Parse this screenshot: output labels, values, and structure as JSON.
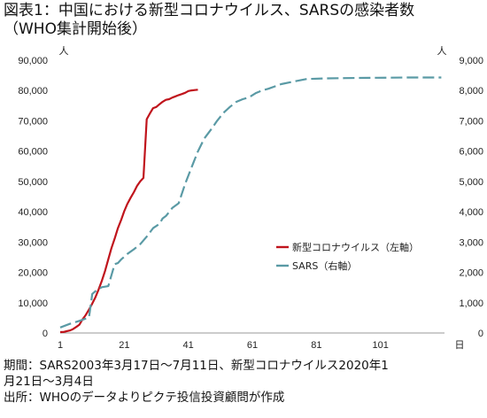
{
  "title_line1": "図表1：中国における新型コロナウイルス、SARSの感染者数",
  "title_line2": "（WHO集計開始後）",
  "footnote_line1": "期間：SARS2003年3月17日～7月11日、新型コロナウイルス2020年1",
  "footnote_line2": "月21日～3月4日",
  "footnote_line3": "出所：WHOのデータよりピクテ投信投資顧問が作成",
  "chart_data": {
    "type": "line",
    "left_axis_unit": "人",
    "right_axis_unit": "人",
    "x_unit": "日",
    "x_ticks": [
      "1",
      "21",
      "41",
      "61",
      "81",
      "101"
    ],
    "xlim": [
      1,
      121
    ],
    "y_left_ticks": [
      "0",
      "10,000",
      "20,000",
      "30,000",
      "40,000",
      "50,000",
      "60,000",
      "70,000",
      "80,000",
      "90,000"
    ],
    "y_right_ticks": [
      "0",
      "1,000",
      "2,000",
      "3,000",
      "4,000",
      "5,000",
      "6,000",
      "7,000",
      "8,000",
      "9,000"
    ],
    "ylim_left": [
      0,
      90000
    ],
    "ylim_right": [
      0,
      9000
    ],
    "series": [
      {
        "name": "新型コロナウイルス（左軸）",
        "axis": "left",
        "color": "#c0141c",
        "x": [
          1,
          2,
          3,
          4,
          5,
          6,
          7,
          8,
          9,
          10,
          11,
          12,
          13,
          14,
          15,
          16,
          17,
          18,
          19,
          20,
          21,
          22,
          23,
          24,
          25,
          26,
          27,
          28,
          29,
          30,
          31,
          32,
          33,
          34,
          35,
          36,
          37,
          38,
          39,
          40,
          41,
          42,
          43,
          44
        ],
        "values": [
          282,
          314,
          571,
          830,
          1287,
          1975,
          2744,
          4515,
          5974,
          7711,
          9692,
          11791,
          14380,
          17205,
          20438,
          24324,
          28018,
          31161,
          34546,
          37198,
          40171,
          42638,
          44653,
          46472,
          48548,
          50054,
          51174,
          70548,
          72436,
          74185,
          74576,
          75465,
          76288,
          76936,
          77150,
          77658,
          78064,
          78497,
          78824,
          79251,
          79824,
          80026,
          80151,
          80270
        ]
      },
      {
        "name": "SARS（右軸）",
        "axis": "right",
        "color": "#5a9aa5",
        "x": [
          1,
          4,
          7,
          10,
          11,
          12,
          13,
          14,
          16,
          18,
          19,
          20,
          22,
          24,
          26,
          28,
          30,
          32,
          33,
          34,
          36,
          38,
          40,
          42,
          44,
          46,
          48,
          50,
          52,
          54,
          56,
          58,
          60,
          62,
          64,
          66,
          70,
          74,
          78,
          84,
          90,
          100,
          110,
          120
        ],
        "values": [
          182,
          300,
          400,
          510,
          1290,
          1380,
          1450,
          1512,
          1546,
          2270,
          2305,
          2422,
          2610,
          2760,
          2930,
          3180,
          3460,
          3599,
          3780,
          3860,
          4125,
          4280,
          4920,
          5460,
          5990,
          6420,
          6700,
          7000,
          7263,
          7460,
          7626,
          7714,
          7780,
          7910,
          8000,
          8060,
          8210,
          8300,
          8380,
          8400,
          8410,
          8420,
          8430,
          8430
        ]
      }
    ],
    "legend_position": "center-right"
  }
}
